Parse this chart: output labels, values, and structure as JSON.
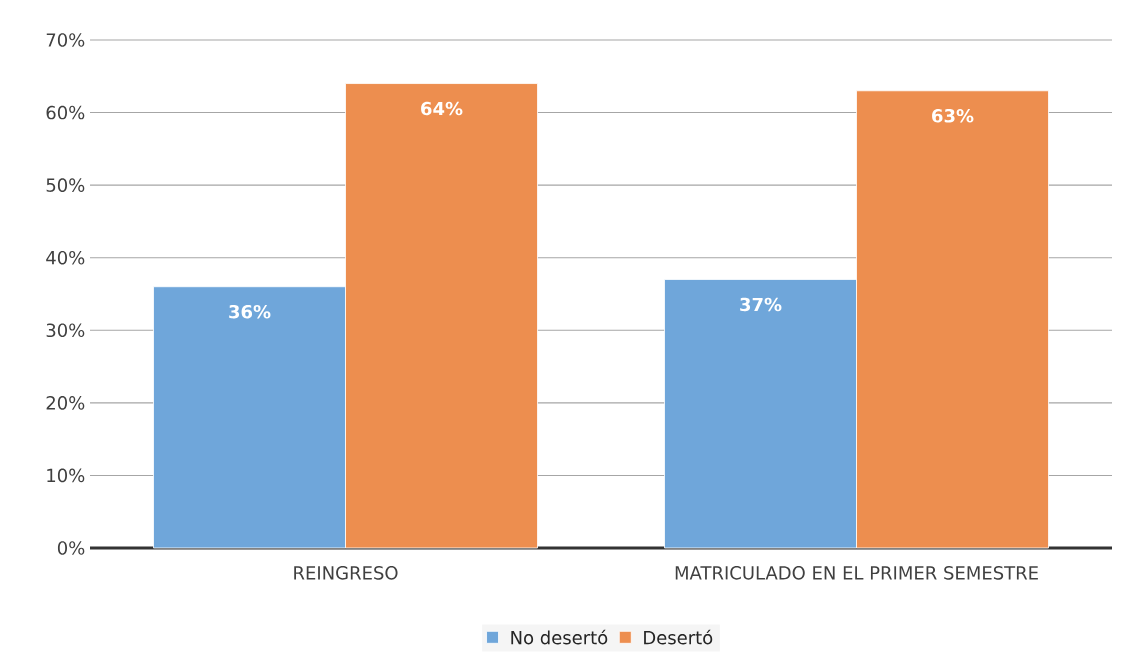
{
  "chart_data": {
    "type": "bar",
    "categories": [
      "REINGRESO",
      "MATRICULADO EN EL PRIMER SEMESTRE"
    ],
    "series": [
      {
        "name": "No desertó",
        "color": "#6fa6da",
        "values": [
          36,
          37
        ],
        "value_labels": [
          "36%",
          "37%"
        ]
      },
      {
        "name": "Desertó",
        "color": "#ed8e4f",
        "values": [
          64,
          63
        ],
        "value_labels": [
          "64%",
          "63%"
        ]
      }
    ],
    "ylim": [
      0,
      70
    ],
    "yticks": [
      {
        "value": 0,
        "label": "0%"
      },
      {
        "value": 10,
        "label": "10%"
      },
      {
        "value": 20,
        "label": "20%"
      },
      {
        "value": 30,
        "label": "30%"
      },
      {
        "value": 40,
        "label": "40%"
      },
      {
        "value": 50,
        "label": "50%"
      },
      {
        "value": 60,
        "label": "60%"
      },
      {
        "value": 70,
        "label": "70%"
      }
    ],
    "grid": "y",
    "legend": "bottom"
  }
}
